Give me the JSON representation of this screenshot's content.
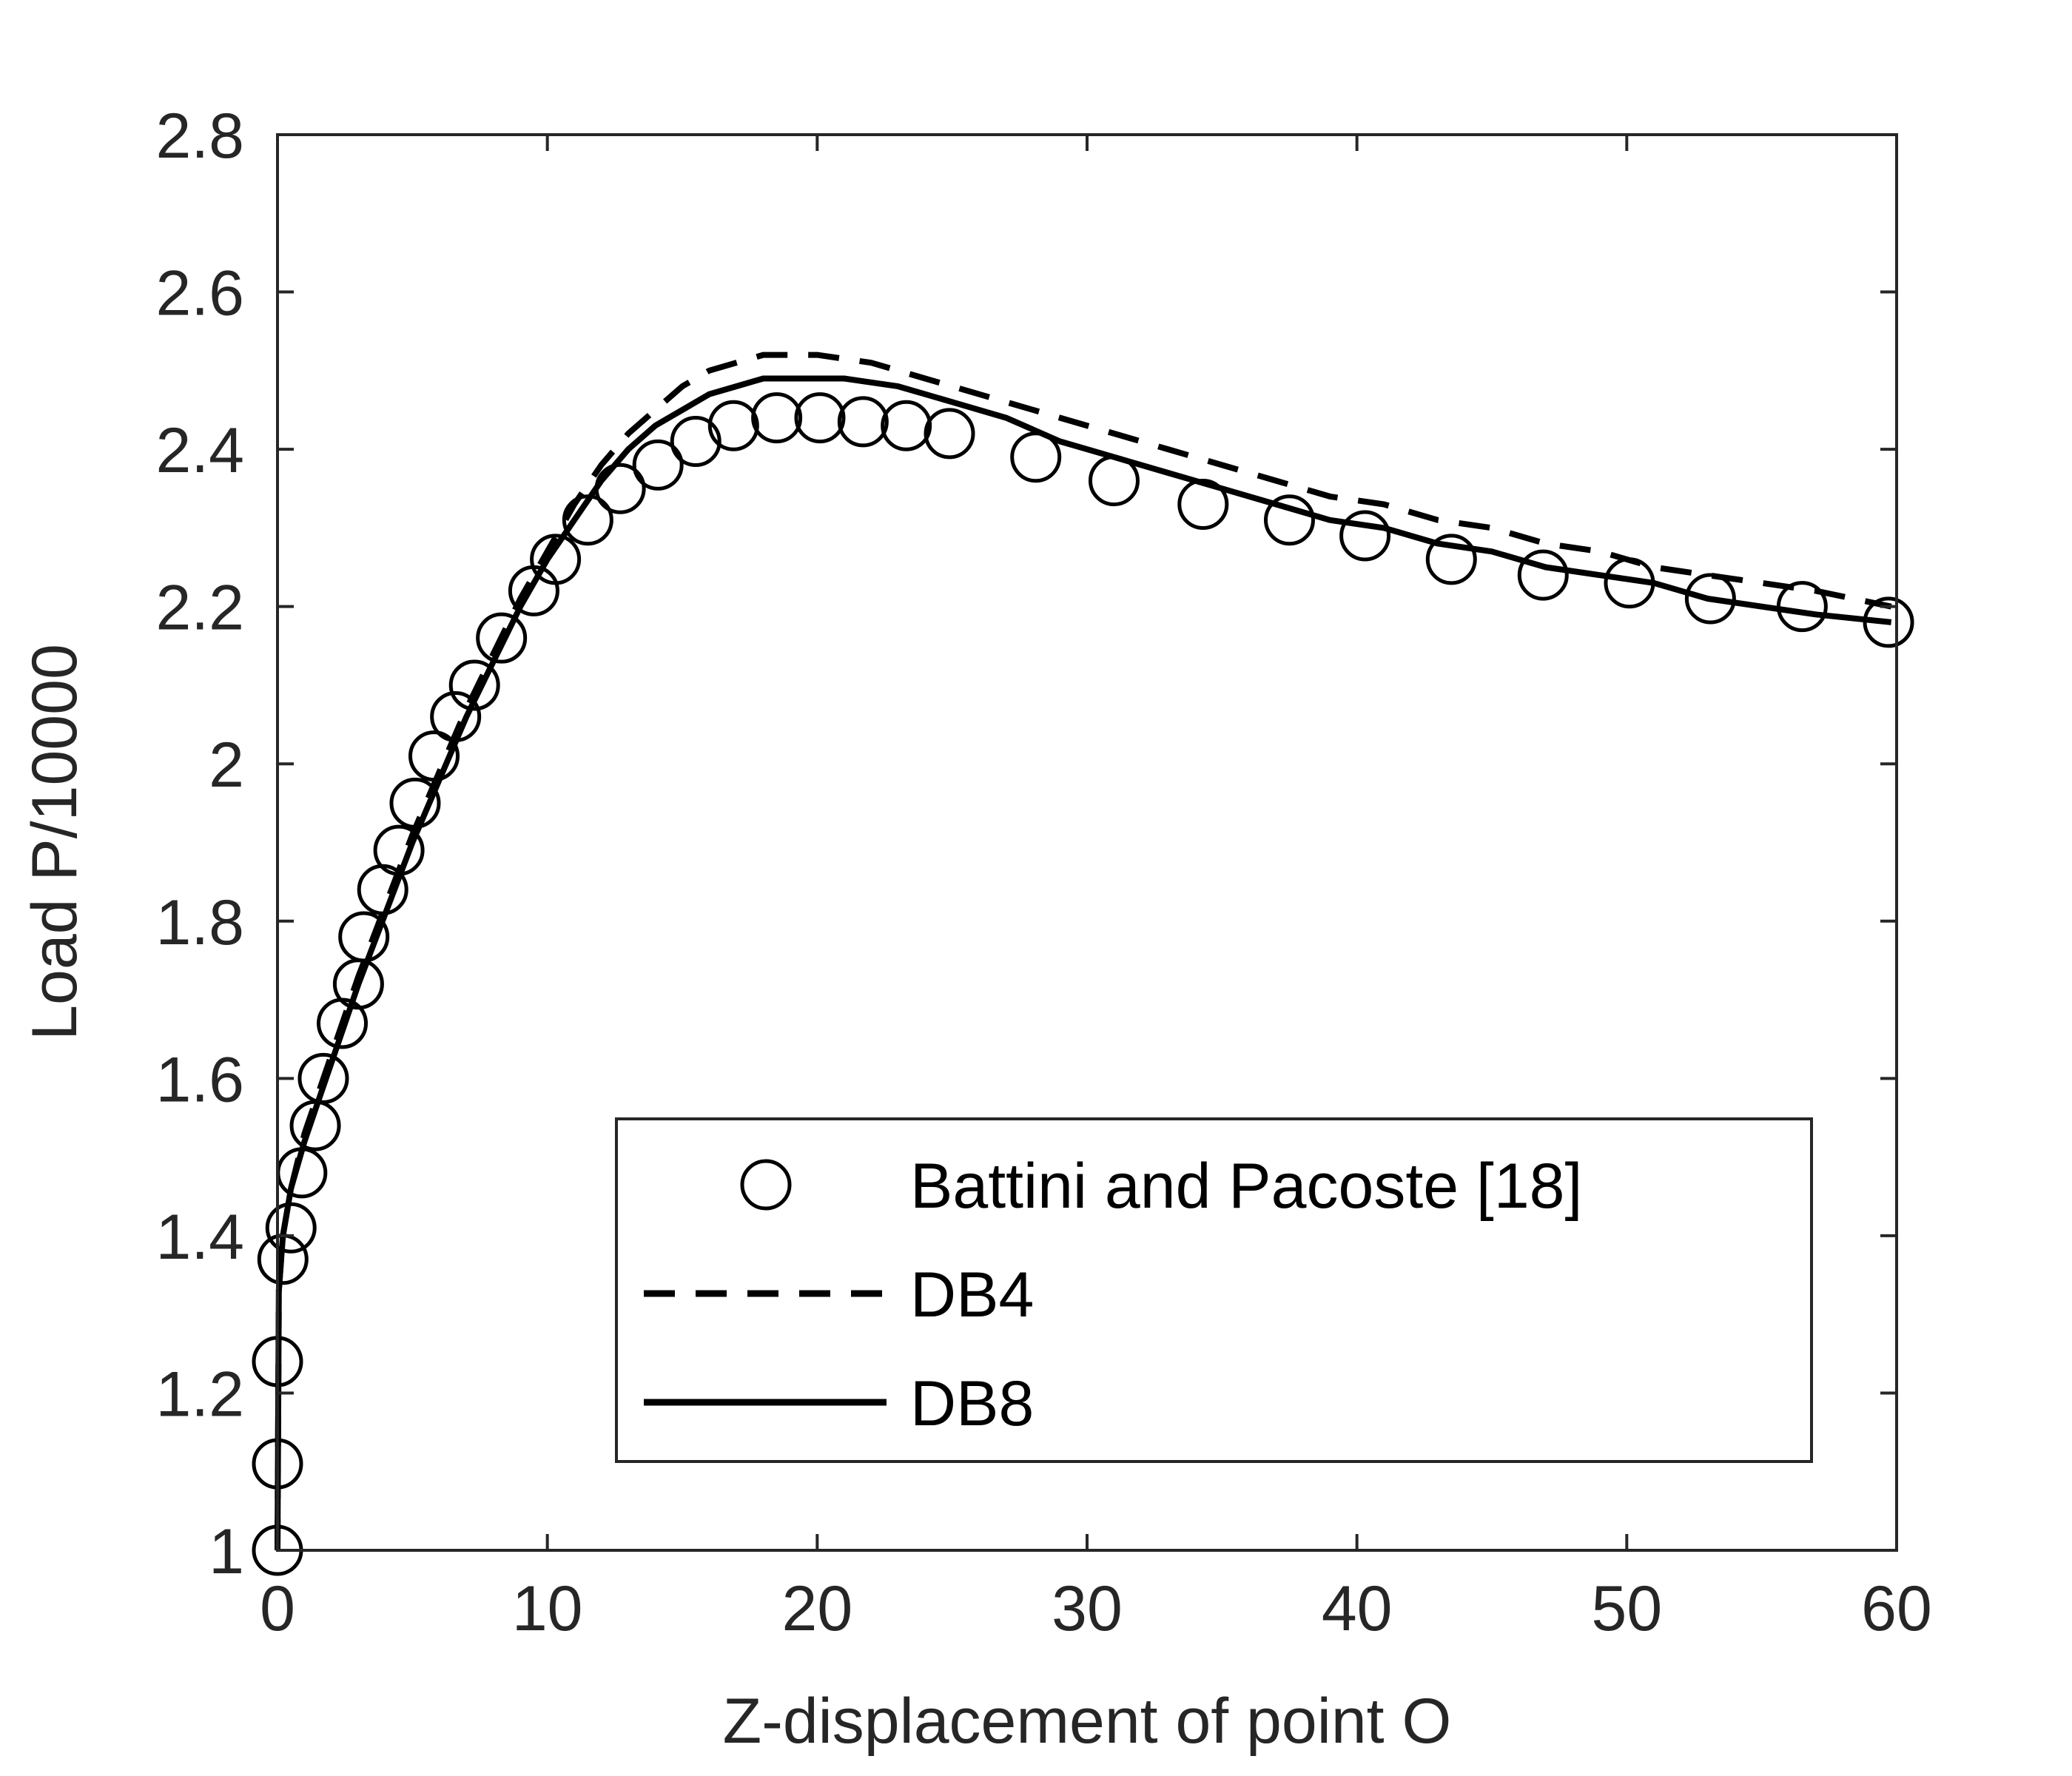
{
  "chart_data": {
    "type": "line",
    "title": "",
    "xlabel": "Z-displacement of point O",
    "ylabel": "Load P/10000",
    "xlim": [
      0,
      60
    ],
    "ylim": [
      1,
      2.8
    ],
    "xticks": [
      0,
      10,
      20,
      30,
      40,
      50,
      60
    ],
    "yticks": [
      1,
      1.2,
      1.4,
      1.6,
      1.8,
      2,
      2.2,
      2.4,
      2.6,
      2.8
    ],
    "xtick_labels": [
      "0",
      "10",
      "20",
      "30",
      "40",
      "50",
      "60"
    ],
    "ytick_labels": [
      "1",
      "1.2",
      "1.4",
      "1.6",
      "1.8",
      "2",
      "2.2",
      "2.4",
      "2.6",
      "2.8"
    ],
    "grid": false,
    "legend_position": "bottom-right",
    "color": "#000000",
    "series": [
      {
        "name": "Battini and Pacoste [18]",
        "style": "markers",
        "marker": "circle-open",
        "x": [
          0,
          0,
          0,
          0.2,
          0.5,
          0.9,
          1.4,
          1.7,
          2.4,
          3.0,
          3.2,
          3.9,
          4.5,
          5.1,
          5.8,
          6.6,
          7.3,
          8.3,
          9.5,
          10.3,
          11.5,
          12.7,
          14.1,
          15.5,
          16.9,
          18.5,
          20.1,
          21.7,
          23.3,
          24.9,
          28.1,
          31.0,
          34.3,
          37.5,
          40.3,
          43.5,
          46.9,
          50.1,
          53.1,
          56.5,
          59.7
        ],
        "y": [
          1.0,
          1.11,
          1.24,
          1.37,
          1.41,
          1.48,
          1.54,
          1.6,
          1.67,
          1.72,
          1.78,
          1.84,
          1.89,
          1.95,
          2.01,
          2.06,
          2.1,
          2.16,
          2.22,
          2.26,
          2.31,
          2.35,
          2.38,
          2.41,
          2.43,
          2.44,
          2.44,
          2.435,
          2.43,
          2.42,
          2.39,
          2.36,
          2.33,
          2.31,
          2.29,
          2.26,
          2.24,
          2.23,
          2.21,
          2.2,
          2.18
        ]
      },
      {
        "name": "DB4",
        "style": "dashed",
        "x": [
          0,
          0.05,
          0.2,
          0.5,
          1,
          1.5,
          2,
          3,
          4,
          5,
          6,
          7,
          8,
          9,
          10,
          11,
          12,
          13,
          14,
          15,
          16,
          17,
          18,
          19,
          20,
          21,
          22,
          23,
          24,
          25,
          27,
          29,
          31,
          33,
          35,
          37,
          39,
          41,
          43,
          45,
          47,
          49,
          51,
          53,
          55,
          57,
          59.8
        ],
        "y": [
          1.0,
          1.33,
          1.4,
          1.46,
          1.53,
          1.58,
          1.63,
          1.73,
          1.82,
          1.91,
          1.99,
          2.07,
          2.14,
          2.21,
          2.27,
          2.33,
          2.38,
          2.42,
          2.45,
          2.48,
          2.5,
          2.51,
          2.52,
          2.52,
          2.52,
          2.515,
          2.51,
          2.5,
          2.49,
          2.48,
          2.46,
          2.44,
          2.42,
          2.4,
          2.38,
          2.36,
          2.34,
          2.33,
          2.31,
          2.3,
          2.28,
          2.27,
          2.25,
          2.24,
          2.23,
          2.22,
          2.2
        ]
      },
      {
        "name": "DB8",
        "style": "solid",
        "x": [
          0,
          0.05,
          0.2,
          0.5,
          1,
          1.5,
          2,
          3,
          4,
          5,
          6,
          7,
          8,
          9,
          10,
          11,
          12,
          13,
          14,
          15,
          16,
          17,
          18,
          19,
          20,
          21,
          22,
          23,
          24,
          25,
          27,
          29,
          31,
          33,
          35,
          37,
          39,
          41,
          43,
          45,
          47,
          49,
          51,
          53,
          55,
          57,
          59.8
        ],
        "y": [
          1.0,
          1.33,
          1.4,
          1.46,
          1.52,
          1.57,
          1.62,
          1.72,
          1.81,
          1.9,
          1.98,
          2.06,
          2.13,
          2.2,
          2.26,
          2.31,
          2.36,
          2.4,
          2.43,
          2.45,
          2.47,
          2.48,
          2.49,
          2.49,
          2.49,
          2.49,
          2.485,
          2.48,
          2.47,
          2.46,
          2.44,
          2.41,
          2.39,
          2.37,
          2.35,
          2.33,
          2.31,
          2.3,
          2.28,
          2.27,
          2.25,
          2.24,
          2.23,
          2.21,
          2.2,
          2.19,
          2.18
        ]
      }
    ]
  }
}
